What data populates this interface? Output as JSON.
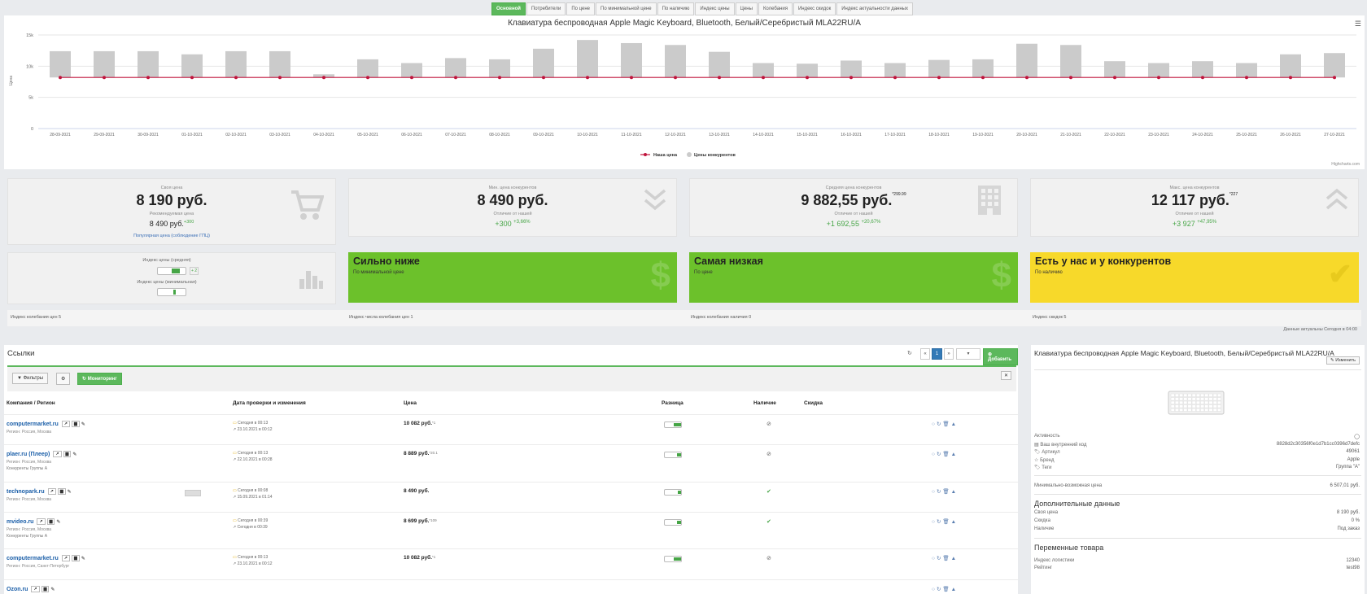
{
  "tabs": [
    "Основной",
    "Потребители",
    "По цене",
    "По минимальной цене",
    "По наличию",
    "Индекс цены",
    "Цены",
    "Колебания",
    "Индекс скидок",
    "Индекс актуальности данных"
  ],
  "chart": {
    "title": "Клавиатура беспроводная Apple Magic Keyboard, Bluetooth, Белый/Серебристый MLA22RU/A",
    "credit": "Highcharts.com",
    "menu_icon": "hamburger-icon"
  },
  "chart_data": {
    "type": "bar",
    "title": "Клавиатура беспроводная Apple Magic Keyboard, Bluetooth, Белый/Серебристый MLA22RU/A",
    "ylabel": "Цена",
    "ylim": [
      0,
      15000
    ],
    "yticks": [
      "0",
      "5k",
      "10k",
      "15k"
    ],
    "categories": [
      "28-09-2021",
      "29-09-2021",
      "30-09-2021",
      "01-10-2021",
      "02-10-2021",
      "03-10-2021",
      "04-10-2021",
      "05-10-2021",
      "06-10-2021",
      "07-10-2021",
      "08-10-2021",
      "09-10-2021",
      "10-10-2021",
      "11-10-2021",
      "12-10-2021",
      "13-10-2021",
      "14-10-2021",
      "15-10-2021",
      "16-10-2021",
      "17-10-2021",
      "18-10-2021",
      "19-10-2021",
      "20-10-2021",
      "21-10-2021",
      "22-10-2021",
      "23-10-2021",
      "24-10-2021",
      "25-10-2021",
      "26-10-2021",
      "27-10-2021"
    ],
    "series": [
      {
        "name": "Наша цена",
        "type": "line",
        "color": "#c0143c",
        "values": [
          8190,
          8190,
          8190,
          8190,
          8190,
          8190,
          8190,
          8190,
          8190,
          8190,
          8190,
          8190,
          8190,
          8190,
          8190,
          8190,
          8190,
          8190,
          8190,
          8190,
          8190,
          8190,
          8190,
          8190,
          8190,
          8190,
          8190,
          8190,
          8190,
          8190
        ]
      },
      {
        "name": "Цены конкурентов",
        "type": "column",
        "color": "#cbcbcb",
        "low": 8190,
        "values": [
          12400,
          12400,
          12400,
          11900,
          12400,
          12400,
          8700,
          11100,
          10500,
          11300,
          11100,
          12800,
          14200,
          13700,
          13400,
          12300,
          10500,
          10400,
          10900,
          10500,
          11000,
          11100,
          13600,
          13400,
          10800,
          10500,
          10800,
          10500,
          11900,
          12100
        ]
      }
    ],
    "legend": "bottom-center",
    "grid": true
  },
  "cards": {
    "own": {
      "label": "Своя цена",
      "value": "8 190 руб.",
      "rec_label": "Рекомендуемая цена",
      "rec_value": "8 490 руб.",
      "rec_sup": "+300",
      "link": "Популярная цена (соблюдение ГПЦ)",
      "icon": "cart-icon"
    },
    "min": {
      "label": "Мин. цена конкурентов",
      "value": "8 490 руб.",
      "diff_label": "Отличие от нашей",
      "diff": "+300",
      "diff_pct": "+3,66%",
      "icon": "chevrons-down-icon"
    },
    "avg": {
      "label": "Средняя цена конкурентов",
      "value": "9 882,55 руб.",
      "sup": "*299.99",
      "diff_label": "Отличие от нашей",
      "diff": "+1 692,55",
      "diff_pct": "+20,67%",
      "icon": "building-icon"
    },
    "max": {
      "label": "Макс. цена конкурентов",
      "value": "12 117 руб.",
      "sup": "*227",
      "diff_label": "Отличие от нашей",
      "diff": "+3 927",
      "diff_pct": "+47,95%",
      "icon": "chevrons-up-icon"
    }
  },
  "indices": {
    "avg_label": "Индекс цены (средняя)",
    "avg_badge": "+ 2",
    "avg_level": 0.7,
    "min_label": "Индекс цены (минимальная)",
    "min_level": 0.55
  },
  "statuses": [
    {
      "title": "Сильно ниже",
      "sub": "По минимальной цене",
      "color": "#6cc12b",
      "icon": "dollar-icon"
    },
    {
      "title": "Самая низкая",
      "sub": "По цене",
      "color": "#6cc12b",
      "icon": "dollar-icon"
    },
    {
      "title": "Есть у нас и у конкурентов",
      "sub": "По наличию",
      "color": "#f7d92a",
      "icon": "check-icon"
    }
  ],
  "strip": [
    "Индекс колебания цен 5",
    "Индекс числа колебания цен 1",
    "Индекс колебания наличия 0",
    "Индекс скидок 5"
  ],
  "actual": "Данные актуальны   Сегодня в 04:00",
  "links": {
    "title": "Ссылки",
    "page": "1",
    "add_label": "Добавить",
    "filters_label": "Фильтры",
    "monitor_label": "Мониторинг",
    "headers": [
      "Компания / Регион",
      "Дата проверки и изменения",
      "Цена",
      "Разница",
      "Наличие",
      "Скидка"
    ],
    "rows": [
      {
        "name": "computermarket.ru",
        "region": "Регион: Россия, Москва",
        "group": "",
        "check": "Сегодня в 00:13",
        "change": "23.10.2021 в 00:12",
        "price": "10 082 руб.",
        "sup": "*1",
        "diff_level": 0.75,
        "avail": "⊘"
      },
      {
        "name": "plaer.ru (Плеер)",
        "region": "Регион: Россия, Москва",
        "group": "Конкуренты Группы А",
        "check": "Сегодня в 00:13",
        "change": "22.10.2021 в 00:28",
        "price": "8 889 руб.",
        "sup": "*20.1",
        "diff_level": 0.45,
        "avail": "⊘"
      },
      {
        "name": "technopark.ru",
        "region": "Регион: Россия, Москва",
        "group": "",
        "check": "Сегодня в 00:08",
        "change": "15.09.2021 в 01:14",
        "price": "8 490 руб.",
        "sup": "",
        "diff_level": 0.35,
        "avail": "✔"
      },
      {
        "name": "mvideo.ru",
        "region": "Регион: Россия, Москва",
        "group": "Конкуренты Группы А",
        "check": "Сегодня в 00:39",
        "change": "Сегодня в 00:39",
        "price": "8 699 руб.",
        "sup": "*109",
        "diff_level": 0.4,
        "avail": "✔"
      },
      {
        "name": "computermarket.ru",
        "region": "Регион: Россия, Санкт-Петербург",
        "group": "",
        "check": "Сегодня в 00:13",
        "change": "23.10.2021 в 00:12",
        "price": "10 082 руб.",
        "sup": "*1",
        "diff_level": 0.75,
        "avail": "⊘"
      },
      {
        "name": "Ozon.ru",
        "region": "",
        "group": "",
        "check": "",
        "change": "",
        "price": "",
        "sup": "",
        "diff_level": 0,
        "avail": ""
      }
    ]
  },
  "product": {
    "title": "Клавиатура беспроводная Apple Magic Keyboard, Bluetooth, Белый/Серебристый MLA22RU/A",
    "edit_label": "Изменить",
    "fields": [
      {
        "label": "Активность",
        "value": "◯"
      },
      {
        "label": "Ваш внутренний код",
        "value": "8828d2c30356f0e1d7b1cc0396d7defc"
      },
      {
        "label": "Артикул",
        "value": "49061"
      },
      {
        "label": "Бренд",
        "value": "Apple"
      },
      {
        "label": "Теги",
        "value": "Группа \"A\""
      }
    ],
    "min_price_label": "Минимально-возможная цена",
    "min_price": "6 507,01 руб.",
    "extra_title": "Дополнительные данные",
    "extra": [
      {
        "label": "Своя цена",
        "value": "8 190 руб."
      },
      {
        "label": "Скидка",
        "value": "0 %"
      },
      {
        "label": "Наличие",
        "value": "Под заказ"
      }
    ],
    "vars_title": "Переменные товара",
    "vars": [
      {
        "label": "Индекс логистики",
        "value": "12340"
      },
      {
        "label": "Рейтинг",
        "value": "test98"
      }
    ]
  }
}
